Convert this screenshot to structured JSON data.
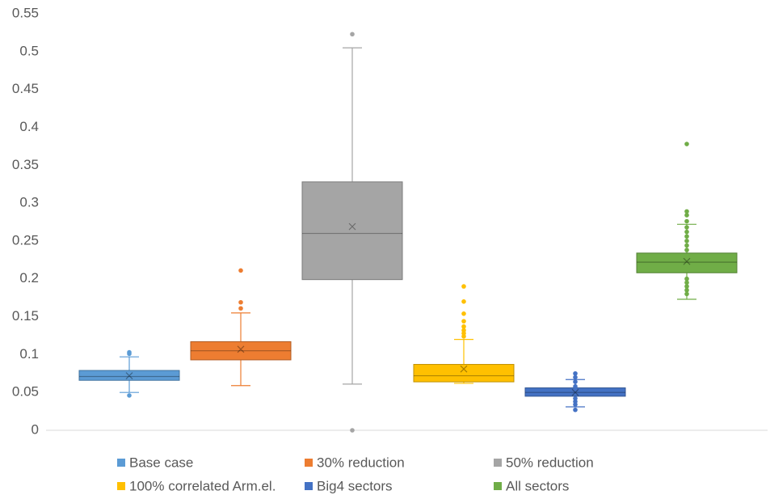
{
  "chart_data": {
    "type": "box",
    "ylim": [
      0,
      0.55
    ],
    "yticks": [
      0,
      0.05,
      0.1,
      0.15,
      0.2,
      0.25,
      0.3,
      0.35,
      0.4,
      0.45,
      0.5,
      0.55
    ],
    "series": [
      {
        "name": "Base case",
        "color": "#5b9bd5",
        "min": 0.05,
        "q1": 0.066,
        "median": 0.071,
        "q3": 0.079,
        "max": 0.097,
        "mean": 0.072,
        "points": [
          0.103,
          0.101,
          0.046
        ]
      },
      {
        "name": "30% reduction",
        "color": "#ed7d31",
        "min": 0.059,
        "q1": 0.093,
        "median": 0.105,
        "q3": 0.117,
        "max": 0.155,
        "mean": 0.107,
        "points": [
          0.211,
          0.169,
          0.161
        ]
      },
      {
        "name": "50% reduction",
        "color": "#a5a5a5",
        "min": 0.061,
        "q1": 0.199,
        "median": 0.26,
        "q3": 0.328,
        "max": 0.505,
        "mean": 0.269,
        "points": [
          0.523,
          0
        ]
      },
      {
        "name": "100% correlated Arm.el.",
        "color": "#ffc000",
        "min": 0.062,
        "q1": 0.064,
        "median": 0.072,
        "q3": 0.087,
        "max": 0.12,
        "mean": 0.081,
        "points": [
          0.19,
          0.17,
          0.154,
          0.144,
          0.137,
          0.132,
          0.128,
          0.124
        ]
      },
      {
        "name": "Big4 sectors",
        "color": "#4472c4",
        "min": 0.031,
        "q1": 0.045,
        "median": 0.05,
        "q3": 0.056,
        "max": 0.067,
        "mean": 0.05,
        "points": [
          0.075,
          0.07,
          0.064,
          0.058,
          0.042,
          0.038,
          0.034,
          0.027
        ]
      },
      {
        "name": "All sectors",
        "color": "#70ad47",
        "min": 0.173,
        "q1": 0.208,
        "median": 0.222,
        "q3": 0.234,
        "max": 0.272,
        "mean": 0.223,
        "points": [
          0.378,
          0.289,
          0.284,
          0.276,
          0.268,
          0.262,
          0.256,
          0.25,
          0.244,
          0.238,
          0.2,
          0.195,
          0.19,
          0.185,
          0.18
        ]
      }
    ]
  }
}
